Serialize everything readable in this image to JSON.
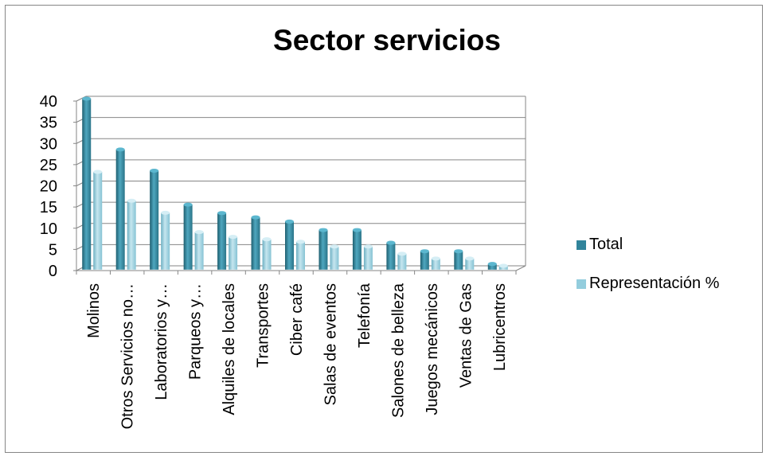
{
  "chart_data": {
    "type": "bar",
    "title": "Sector servicios",
    "categories": [
      "Molinos",
      "Otros Servicios no…",
      "Laboratorios y…",
      "Parqueos y…",
      "Alquiles de locales",
      "Transportes",
      "Ciber café",
      "Salas de eventos",
      "Telefonía",
      "Salones de belleza",
      "Juegos mecánicos",
      "Ventas de Gas",
      "Lubricentros"
    ],
    "series": [
      {
        "name": "Total",
        "color": "#31849B",
        "values": [
          40,
          28,
          23,
          15,
          13,
          12,
          11,
          9,
          9,
          6,
          4,
          4,
          1
        ]
      },
      {
        "name": "Representación %",
        "color": "#93CDDD",
        "values": [
          22.73,
          15.91,
          13.07,
          8.52,
          7.39,
          6.82,
          6.25,
          5.11,
          5.11,
          3.41,
          2.27,
          2.27,
          0.57
        ]
      }
    ],
    "ylim": [
      0,
      40
    ],
    "yticks": [
      0,
      5,
      10,
      15,
      20,
      25,
      30,
      35,
      40
    ],
    "grid": true,
    "legend": "right",
    "style": "3d-cylinder"
  }
}
